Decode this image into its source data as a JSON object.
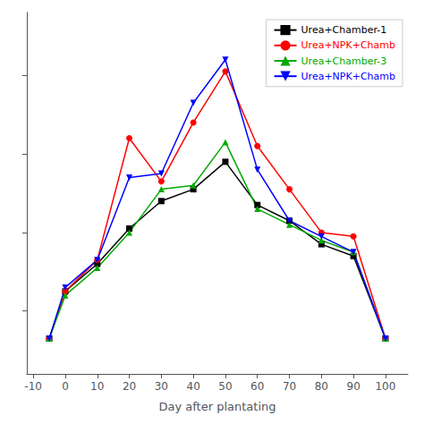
{
  "chart_data": {
    "type": "line",
    "x": [
      -5,
      0,
      10,
      20,
      30,
      40,
      50,
      60,
      70,
      80,
      90,
      100
    ],
    "series": [
      {
        "name": "Urea+Chamber-1",
        "color": "#000000",
        "marker": "square",
        "values": [
          -3.5,
          2.5,
          6.0,
          10.5,
          14.0,
          15.5,
          19.0,
          13.5,
          11.5,
          8.5,
          7.0,
          -3.5
        ]
      },
      {
        "name": "Urea+NPK+Chamb",
        "color": "#ff0000",
        "marker": "circle",
        "values": [
          -3.5,
          2.5,
          6.5,
          22.0,
          16.5,
          24.0,
          30.5,
          21.0,
          15.5,
          10.0,
          9.5,
          -3.5
        ]
      },
      {
        "name": "Urea+Chamber-3",
        "color": "#00aa00",
        "marker": "triangle-up",
        "values": [
          -3.5,
          2.0,
          5.5,
          10.0,
          15.5,
          16.0,
          21.5,
          13.0,
          11.0,
          9.0,
          7.5,
          -3.5
        ]
      },
      {
        "name": "Urea+NPK+Chamb",
        "color": "#0000ff",
        "marker": "triangle-down",
        "values": [
          -3.5,
          3.0,
          6.5,
          17.0,
          17.5,
          26.5,
          32.0,
          18.0,
          11.5,
          9.5,
          7.5,
          -3.5
        ]
      }
    ],
    "xlabel": "Day after plantating",
    "xlim": [
      -12,
      107
    ],
    "ylim": [
      -8,
      38
    ],
    "xticks": [
      -10,
      0,
      10,
      20,
      30,
      40,
      50,
      60,
      70,
      80,
      90,
      100
    ],
    "yticks": [
      0,
      10,
      20,
      30
    ],
    "tick_labels": "x",
    "grid": false,
    "legend": "upper right"
  }
}
